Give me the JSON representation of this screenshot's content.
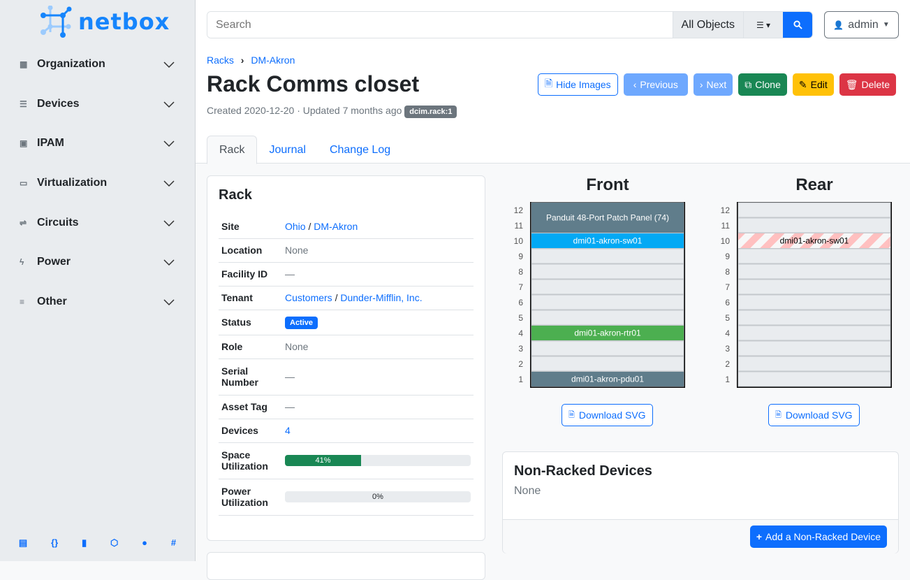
{
  "brand": "netbox",
  "sidebar": {
    "items": [
      {
        "label": "Organization",
        "icon": "building-icon"
      },
      {
        "label": "Devices",
        "icon": "server-icon"
      },
      {
        "label": "IPAM",
        "icon": "ip-icon"
      },
      {
        "label": "Virtualization",
        "icon": "monitor-icon"
      },
      {
        "label": "Circuits",
        "icon": "circuit-icon"
      },
      {
        "label": "Power",
        "icon": "bolt-icon"
      },
      {
        "label": "Other",
        "icon": "lines-icon"
      }
    ],
    "footer": [
      "book-icon",
      "api-icon",
      "bookmark-icon",
      "graphql-icon",
      "github-icon",
      "slack-icon"
    ]
  },
  "search": {
    "placeholder": "Search",
    "scope": "All Objects"
  },
  "user": "admin",
  "breadcrumb": [
    "Racks",
    "DM-Akron"
  ],
  "title": "Rack Comms closet",
  "meta": "Created 2020-12-20 · Updated 7 months ago",
  "badge": "dcim.rack:1",
  "buttons": {
    "hide_images": "Hide Images",
    "previous": "Previous",
    "next": "Next",
    "clone": "Clone",
    "edit": "Edit",
    "delete": "Delete"
  },
  "tabs": [
    "Rack",
    "Journal",
    "Change Log"
  ],
  "rack_card": {
    "title": "Rack",
    "rows": {
      "site": {
        "label": "Site",
        "a": "Ohio",
        "b": "DM-Akron"
      },
      "location": {
        "label": "Location",
        "value": "None"
      },
      "facility": {
        "label": "Facility ID",
        "value": "—"
      },
      "tenant": {
        "label": "Tenant",
        "a": "Customers",
        "b": "Dunder-Mifflin, Inc."
      },
      "status": {
        "label": "Status",
        "value": "Active"
      },
      "role": {
        "label": "Role",
        "value": "None"
      },
      "serial": {
        "label": "Serial Number",
        "value": "—"
      },
      "asset": {
        "label": "Asset Tag",
        "value": "—"
      },
      "devices": {
        "label": "Devices",
        "value": "4"
      },
      "space": {
        "label": "Space Utilization",
        "value": "41%",
        "percent": 41
      },
      "power": {
        "label": "Power Utilization",
        "value": "0%",
        "percent": 0
      }
    }
  },
  "front": {
    "title": "Front",
    "devices": [
      {
        "name": "Panduit 48-Port Patch Panel (74)",
        "top": 12,
        "height": 2,
        "color": "#607d8b"
      },
      {
        "name": "dmi01-akron-sw01",
        "top": 10,
        "height": 1,
        "color": "#03a9f4"
      },
      {
        "name": "dmi01-akron-rtr01",
        "top": 4,
        "height": 1,
        "color": "#4caf50"
      },
      {
        "name": "dmi01-akron-pdu01",
        "top": 1,
        "height": 1,
        "color": "#607d8b"
      }
    ]
  },
  "rear": {
    "title": "Rear",
    "devices": [
      {
        "name": "dmi01-akron-sw01",
        "top": 10,
        "height": 1,
        "color": "#ffc0c0",
        "striped": true
      }
    ]
  },
  "download_svg": "Download SVG",
  "non_racked": {
    "title": "Non-Racked Devices",
    "value": "None",
    "add": "Add a Non-Racked Device"
  }
}
